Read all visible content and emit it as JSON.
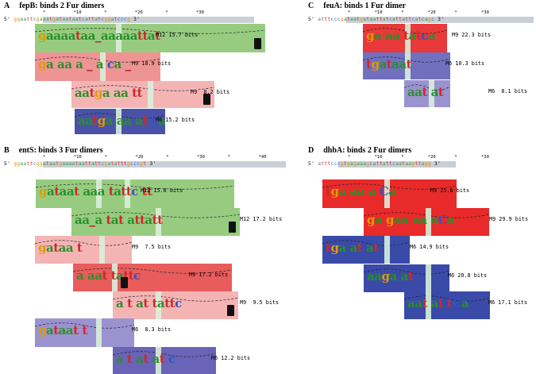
{
  "figure": {
    "panels": [
      {
        "id": "A",
        "title": "fepB: binds 2 Fur dimers",
        "ticks": [
          "*",
          "*10",
          "*",
          "*20",
          "*",
          "*30"
        ],
        "prefix": "5'",
        "sequence": "ggaattcgaaatgataataatcattatcggatcccg",
        "suffix": "3'",
        "sites": [
          {
            "model": "M12",
            "bits": "15.7 bits",
            "color": "#97cc80",
            "letters": "gaaaataa_aaaaattat"
          },
          {
            "model": "M9",
            "bits": "10.9 bits",
            "color": "#ef9494",
            "letters": "ga aa a _ a ca _"
          },
          {
            "model": "M9",
            "bits": " 8.2 bits",
            "color": "#f5b4b4",
            "letters": "aatga aa tt"
          },
          {
            "model": "M6",
            "bits": "15.2 bits",
            "color": "#4a52a8",
            "letters": "aatga aa at ca"
          }
        ]
      },
      {
        "id": "B",
        "title": "entS: binds 3 Fur dimers",
        "ticks": [
          "*",
          "*10",
          "*",
          "*20",
          "*",
          "*30",
          "*",
          "*40"
        ],
        "prefix": "5'",
        "sequence": "ggaattcggataatgaaaataattattcgatatttgcccgt",
        "suffix": "3'",
        "sites": [
          {
            "model": "M12",
            "bits": "15.6 bits",
            "color": "#97cc80",
            "letters": "gataat aaa tattc tt"
          },
          {
            "model": "M12",
            "bits": "17.2 bits",
            "color": "#97cc80",
            "letters": "aa_a tat  attatt"
          },
          {
            "model": "M9",
            "bits": " 7.5 bits",
            "color": "#f5b4b4",
            "letters": "gataa  t"
          },
          {
            "model": "M9",
            "bits": "17.2 bits",
            "color": "#e85c5c",
            "letters": "a  aat tattc"
          },
          {
            "model": "M9",
            "bits": " 9.5 bits",
            "color": "#f5b4b4",
            "letters": "a t at  tattc"
          },
          {
            "model": "M6",
            "bits": " 8.3 bits",
            "color": "#9b93cf",
            "letters": "gataat t"
          },
          {
            "model": "M6",
            "bits": "12.2 bits",
            "color": "#6a64b8",
            "letters": "a t at at c"
          }
        ]
      },
      {
        "id": "C",
        "title": "feuA: binds 1 Fur dimer",
        "ticks": [
          "*",
          "*10",
          "*",
          "*20",
          "*",
          "*30"
        ],
        "prefix": "5'",
        "sequence": "atttcccgataatgataattatcattattcatcagc",
        "suffix": "3'",
        "sites": [
          {
            "model": "M9",
            "bits": "22.3 bits",
            "color": "#e83a3a",
            "letters": "ga aa  tatca"
          },
          {
            "model": "M6",
            "bits": "10.3 bits",
            "color": "#7070bf",
            "letters": "tgataat"
          },
          {
            "model": "M6",
            "bits": " 8.1 bits",
            "color": "#9b93cf",
            "letters": "aat  at"
          }
        ]
      },
      {
        "id": "D",
        "title": "dhbA: binds 2 Fur dimers",
        "ticks": [
          "*",
          "*10",
          "*",
          "*20",
          "*",
          "*30"
        ],
        "prefix": "5'",
        "sequence": "atttcccgtgagaaagcattattcaataagttagg",
        "suffix": "3'",
        "sites": [
          {
            "model": "M9",
            "bits": "25.6 bits",
            "color": "#e82a2a",
            "letters": "tga aa  a Ca"
          },
          {
            "model": "M9",
            "bits": "29.9 bits",
            "color": "#e82a2a",
            "letters": "ga gaa aa  aCa"
          },
          {
            "model": "M6",
            "bits": "14.9 bits",
            "color": "#3a4aa8",
            "letters": "tga at at"
          },
          {
            "model": "M6",
            "bits": "20.8 bits",
            "color": "#3a4aa8",
            "letters": "aaga at"
          },
          {
            "model": "M6",
            "bits": "17.1 bits",
            "color": "#3a4aa8",
            "letters": "aat at tCa"
          }
        ]
      }
    ]
  }
}
